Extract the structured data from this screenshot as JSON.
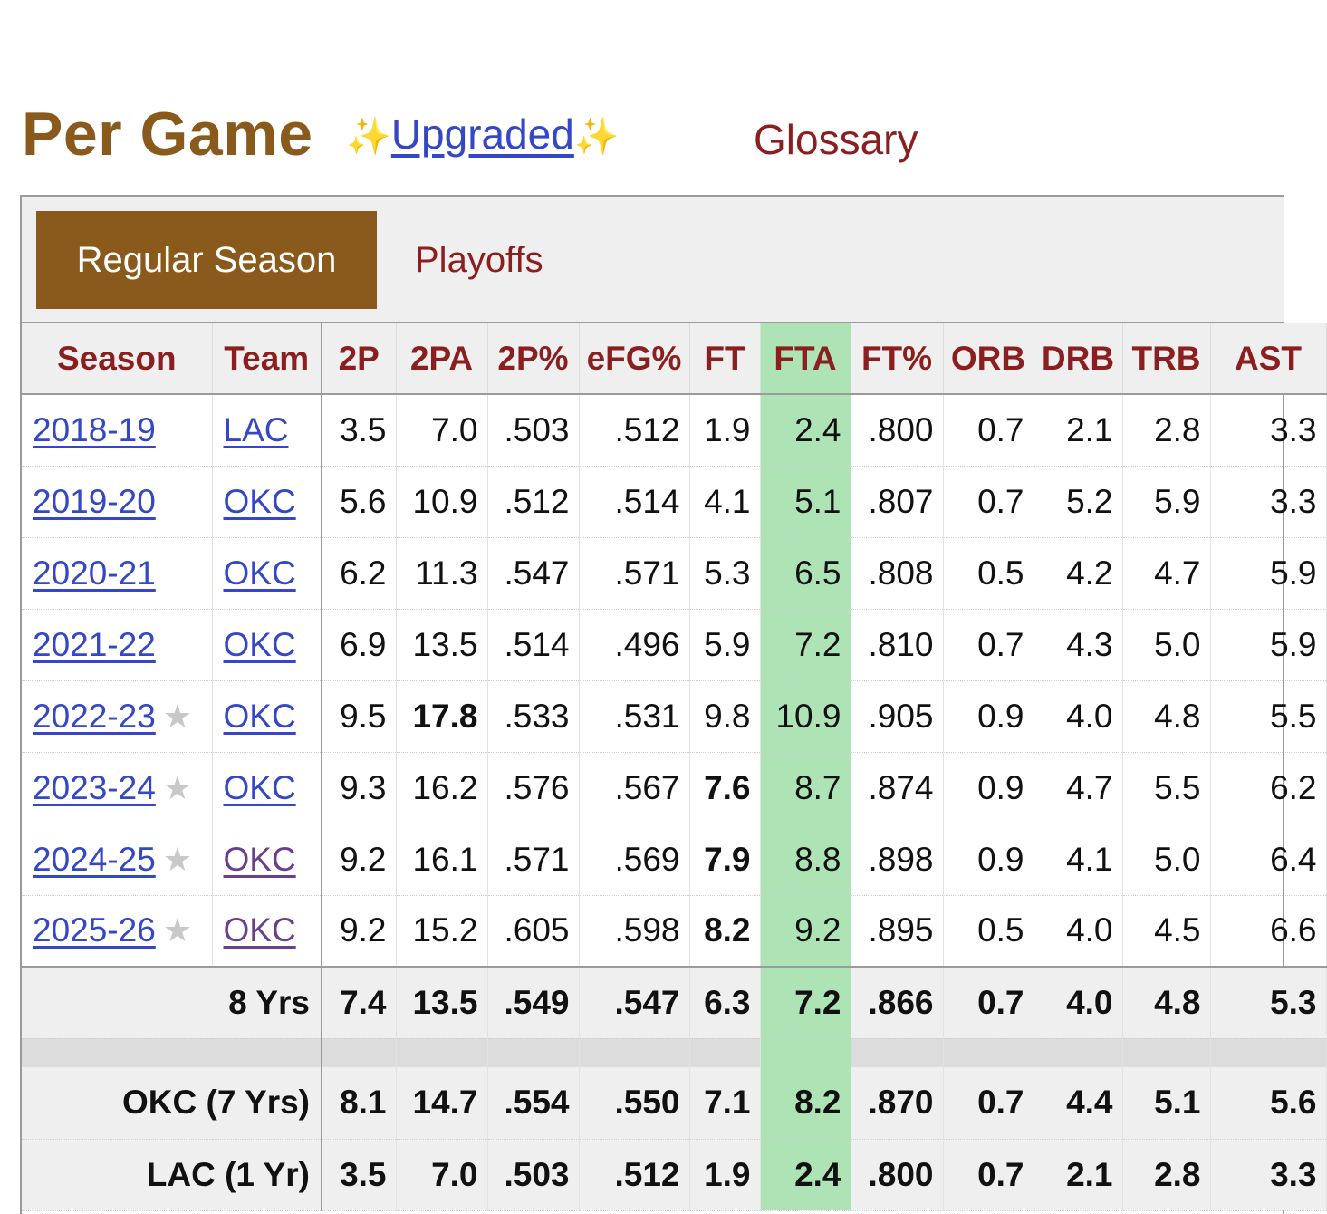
{
  "header": {
    "title": "Per Game",
    "upgraded_label": "Upgraded",
    "sparkle": "✨",
    "glossary_label": "Glossary"
  },
  "tabs": {
    "regular_season": "Regular Season",
    "playoffs": "Playoffs"
  },
  "table": {
    "columns": [
      "Season",
      "Team",
      "2P",
      "2PA",
      "2P%",
      "eFG%",
      "FT",
      "FTA",
      "FT%",
      "ORB",
      "DRB",
      "TRB",
      "AST"
    ],
    "star": "★",
    "rows": [
      {
        "season": "2018-19",
        "all_star": false,
        "team": "LAC",
        "team_visited": false,
        "stats": [
          "3.5",
          "7.0",
          ".503",
          ".512",
          "1.9",
          "2.4",
          ".800",
          "0.7",
          "2.1",
          "2.8",
          "3.3"
        ],
        "bold": []
      },
      {
        "season": "2019-20",
        "all_star": false,
        "team": "OKC",
        "team_visited": false,
        "stats": [
          "5.6",
          "10.9",
          ".512",
          ".514",
          "4.1",
          "5.1",
          ".807",
          "0.7",
          "5.2",
          "5.9",
          "3.3"
        ],
        "bold": []
      },
      {
        "season": "2020-21",
        "all_star": false,
        "team": "OKC",
        "team_visited": false,
        "stats": [
          "6.2",
          "11.3",
          ".547",
          ".571",
          "5.3",
          "6.5",
          ".808",
          "0.5",
          "4.2",
          "4.7",
          "5.9"
        ],
        "bold": []
      },
      {
        "season": "2021-22",
        "all_star": false,
        "team": "OKC",
        "team_visited": false,
        "stats": [
          "6.9",
          "13.5",
          ".514",
          ".496",
          "5.9",
          "7.2",
          ".810",
          "0.7",
          "4.3",
          "5.0",
          "5.9"
        ],
        "bold": []
      },
      {
        "season": "2022-23",
        "all_star": true,
        "team": "OKC",
        "team_visited": false,
        "stats": [
          "9.5",
          "17.8",
          ".533",
          ".531",
          "9.8",
          "10.9",
          ".905",
          "0.9",
          "4.0",
          "4.8",
          "5.5"
        ],
        "bold": [
          1
        ]
      },
      {
        "season": "2023-24",
        "all_star": true,
        "team": "OKC",
        "team_visited": false,
        "stats": [
          "9.3",
          "16.2",
          ".576",
          ".567",
          "7.6",
          "8.7",
          ".874",
          "0.9",
          "4.7",
          "5.5",
          "6.2"
        ],
        "bold": [
          4
        ]
      },
      {
        "season": "2024-25",
        "all_star": true,
        "team": "OKC",
        "team_visited": true,
        "stats": [
          "9.2",
          "16.1",
          ".571",
          ".569",
          "7.9",
          "8.8",
          ".898",
          "0.9",
          "4.1",
          "5.0",
          "6.4"
        ],
        "bold": [
          4
        ]
      },
      {
        "season": "2025-26",
        "all_star": true,
        "team": "OKC",
        "team_visited": true,
        "stats": [
          "9.2",
          "15.2",
          ".605",
          ".598",
          "8.2",
          "9.2",
          ".895",
          "0.5",
          "4.0",
          "4.5",
          "6.6"
        ],
        "bold": [
          4
        ]
      }
    ],
    "totals": [
      {
        "label": "8 Yrs",
        "stats": [
          "7.4",
          "13.5",
          ".549",
          ".547",
          "6.3",
          "7.2",
          ".866",
          "0.7",
          "4.0",
          "4.8",
          "5.3"
        ]
      },
      {
        "label": "OKC (7 Yrs)",
        "stats": [
          "8.1",
          "14.7",
          ".554",
          ".550",
          "7.1",
          "8.2",
          ".870",
          "0.7",
          "4.4",
          "5.1",
          "5.6"
        ]
      },
      {
        "label": "LAC (1 Yr)",
        "stats": [
          "3.5",
          "7.0",
          ".503",
          ".512",
          "1.9",
          "2.4",
          ".800",
          "0.7",
          "2.1",
          "2.8",
          "3.3"
        ]
      }
    ]
  },
  "colors": {
    "title_brown": "#8a5a1c",
    "link_blue": "#3347c7",
    "header_red": "#8b1e1e",
    "highlight_green": "#aee3b5"
  }
}
